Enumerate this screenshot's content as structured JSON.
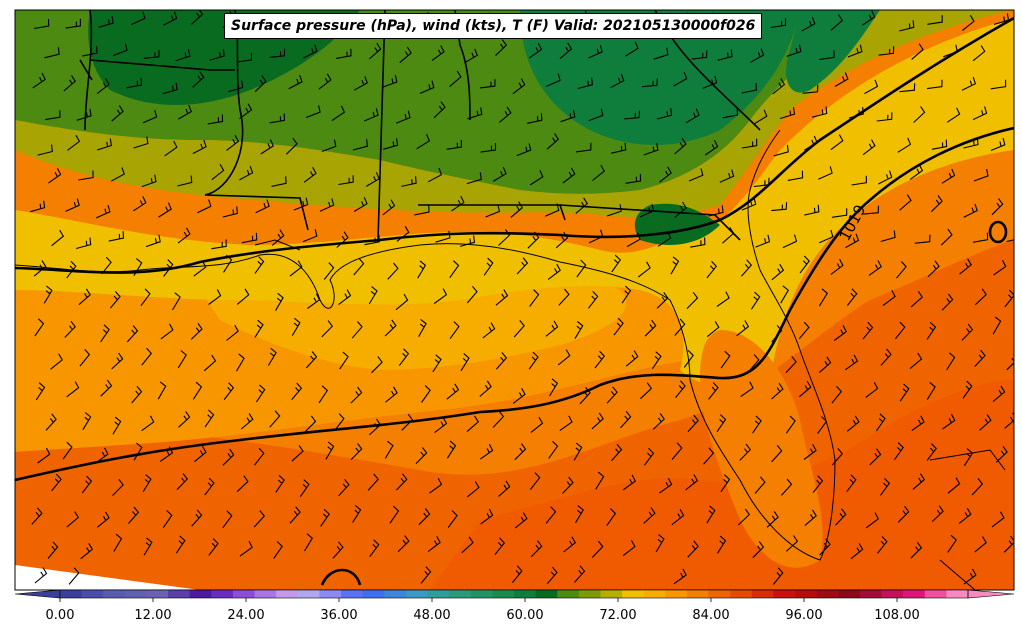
{
  "map": {
    "title": "Surface pressure (hPa), wind (kts), T (F) Valid: 202105130000f026",
    "isobar_labels": [
      {
        "text": "1019"
      }
    ]
  },
  "colorbar": {
    "tick_labels": [
      "0.00",
      "12.00",
      "24.00",
      "36.00",
      "48.00",
      "60.00",
      "72.00",
      "84.00",
      "96.00",
      "108.00"
    ],
    "min": -6,
    "max": 123,
    "colors": [
      "#3b3f9c",
      "#4a4ea8",
      "#575cb0",
      "#6060ad",
      "#6a62b0",
      "#5a3fa7",
      "#4b1a9e",
      "#6a2bc0",
      "#8a4fd6",
      "#a877e3",
      "#c49ae8",
      "#b0a8ef",
      "#8a8af2",
      "#5a72f5",
      "#3f6ff0",
      "#3d86d8",
      "#3c98c4",
      "#2f9e9a",
      "#2a9a7a",
      "#219466",
      "#1a8a4e",
      "#0f7e3c",
      "#086b20",
      "#4c8a12",
      "#7f9a08",
      "#b6ad02",
      "#f0c000",
      "#f7ad00",
      "#f89600",
      "#f57f00",
      "#f06400",
      "#e54a00",
      "#d92a0a",
      "#cc1010",
      "#b80c0c",
      "#a00a10",
      "#8a0a1a",
      "#a50b3a",
      "#c5105a",
      "#e0157a",
      "#f0509c",
      "#f78ac0"
    ]
  }
}
